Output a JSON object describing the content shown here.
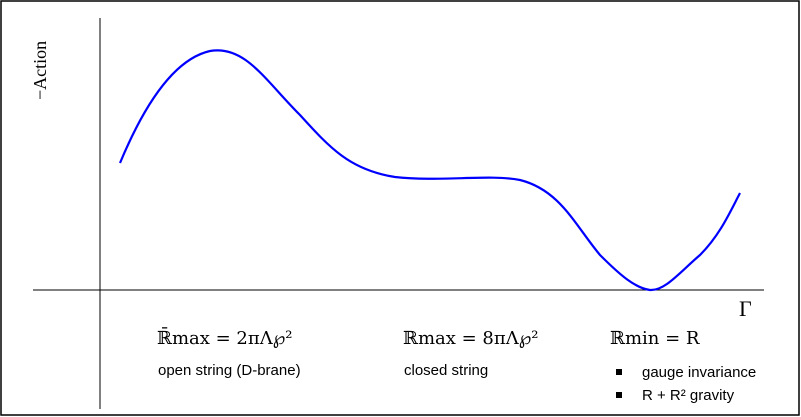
{
  "axes": {
    "y_label": "−Action",
    "x_label": "Γ"
  },
  "labels": {
    "open_formula": "ℝ̄max = 2πΛ℘²",
    "open_caption": "open string (D-brane)",
    "closed_formula": "ℝmax = 8πΛ℘²",
    "closed_caption": "closed string",
    "min_formula": "ℝmin = R",
    "bullets": [
      "gauge invariance",
      "R + R² gravity"
    ]
  },
  "colors": {
    "curve": "#0000ff",
    "axes": "#000000",
    "frame": "#000000"
  }
}
